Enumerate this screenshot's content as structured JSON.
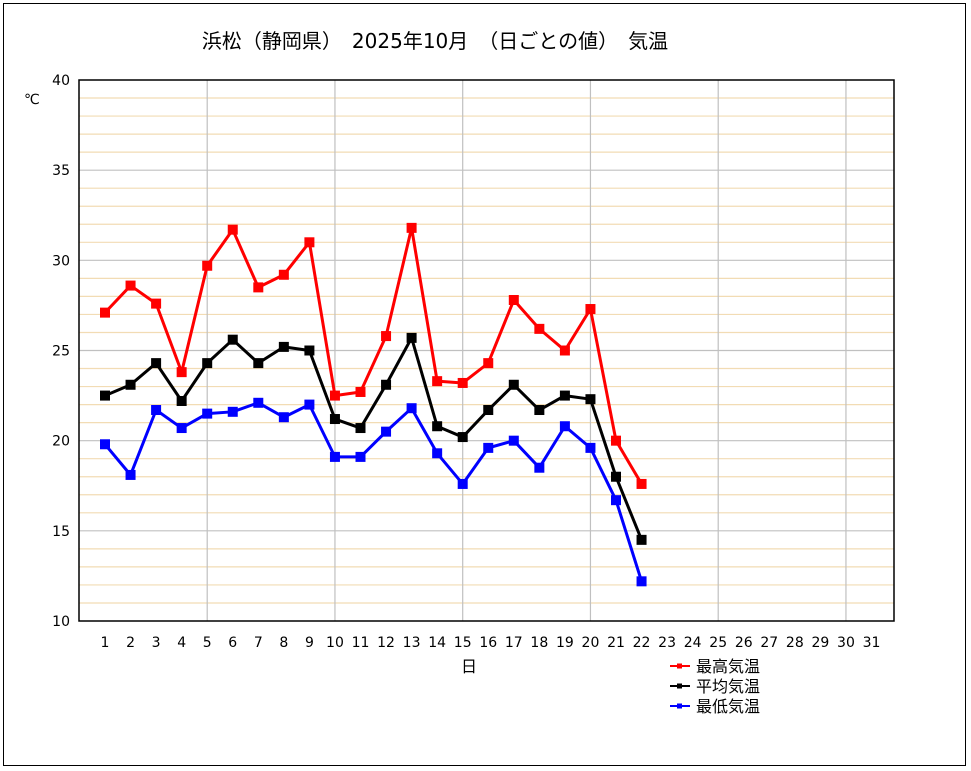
{
  "chart_data": {
    "type": "line",
    "title": "浜松（静岡県）　2025年10月　（日ごとの値）　気温",
    "ylabel": "℃",
    "xlabel": "日",
    "ylim": [
      10,
      40
    ],
    "yticks": [
      10,
      15,
      20,
      25,
      30,
      35,
      40
    ],
    "x": [
      1,
      2,
      3,
      4,
      5,
      6,
      7,
      8,
      9,
      10,
      11,
      12,
      13,
      14,
      15,
      16,
      17,
      18,
      19,
      20,
      21,
      22,
      23,
      24,
      25,
      26,
      27,
      28,
      29,
      30,
      31
    ],
    "x_labels": [
      "1",
      "2",
      "3",
      "4",
      "5",
      "6",
      "7",
      "8",
      "9",
      "10",
      "11",
      "12",
      "13",
      "14",
      "15",
      "16",
      "17",
      "18",
      "19",
      "20",
      "21",
      "22",
      "23",
      "24",
      "25",
      "26",
      "27",
      "28",
      "29",
      "30",
      "31"
    ],
    "grid": true,
    "legend_position": "bottom-right",
    "series": [
      {
        "name": "最高気温",
        "color": "#ff0000",
        "values": [
          27.1,
          28.6,
          27.6,
          23.8,
          29.7,
          31.7,
          28.5,
          29.2,
          31.0,
          22.5,
          22.7,
          25.8,
          31.8,
          23.3,
          23.2,
          24.3,
          27.8,
          26.2,
          25.0,
          27.3,
          20.0,
          17.6,
          null,
          null,
          null,
          null,
          null,
          null,
          null,
          null,
          null
        ]
      },
      {
        "name": "平均気温",
        "color": "#000000",
        "values": [
          22.5,
          23.1,
          24.3,
          22.2,
          24.3,
          25.6,
          24.3,
          25.2,
          25.0,
          21.2,
          20.7,
          23.1,
          25.7,
          20.8,
          20.2,
          21.7,
          23.1,
          21.7,
          22.5,
          22.3,
          18.0,
          14.5,
          null,
          null,
          null,
          null,
          null,
          null,
          null,
          null,
          null
        ]
      },
      {
        "name": "最低気温",
        "color": "#0000ff",
        "values": [
          19.8,
          18.1,
          21.7,
          20.7,
          21.5,
          21.6,
          22.1,
          21.3,
          22.0,
          19.1,
          19.1,
          20.5,
          21.8,
          19.3,
          17.6,
          19.6,
          20.0,
          18.5,
          20.8,
          19.6,
          16.7,
          12.2,
          null,
          null,
          null,
          null,
          null,
          null,
          null,
          null,
          null
        ]
      }
    ]
  }
}
